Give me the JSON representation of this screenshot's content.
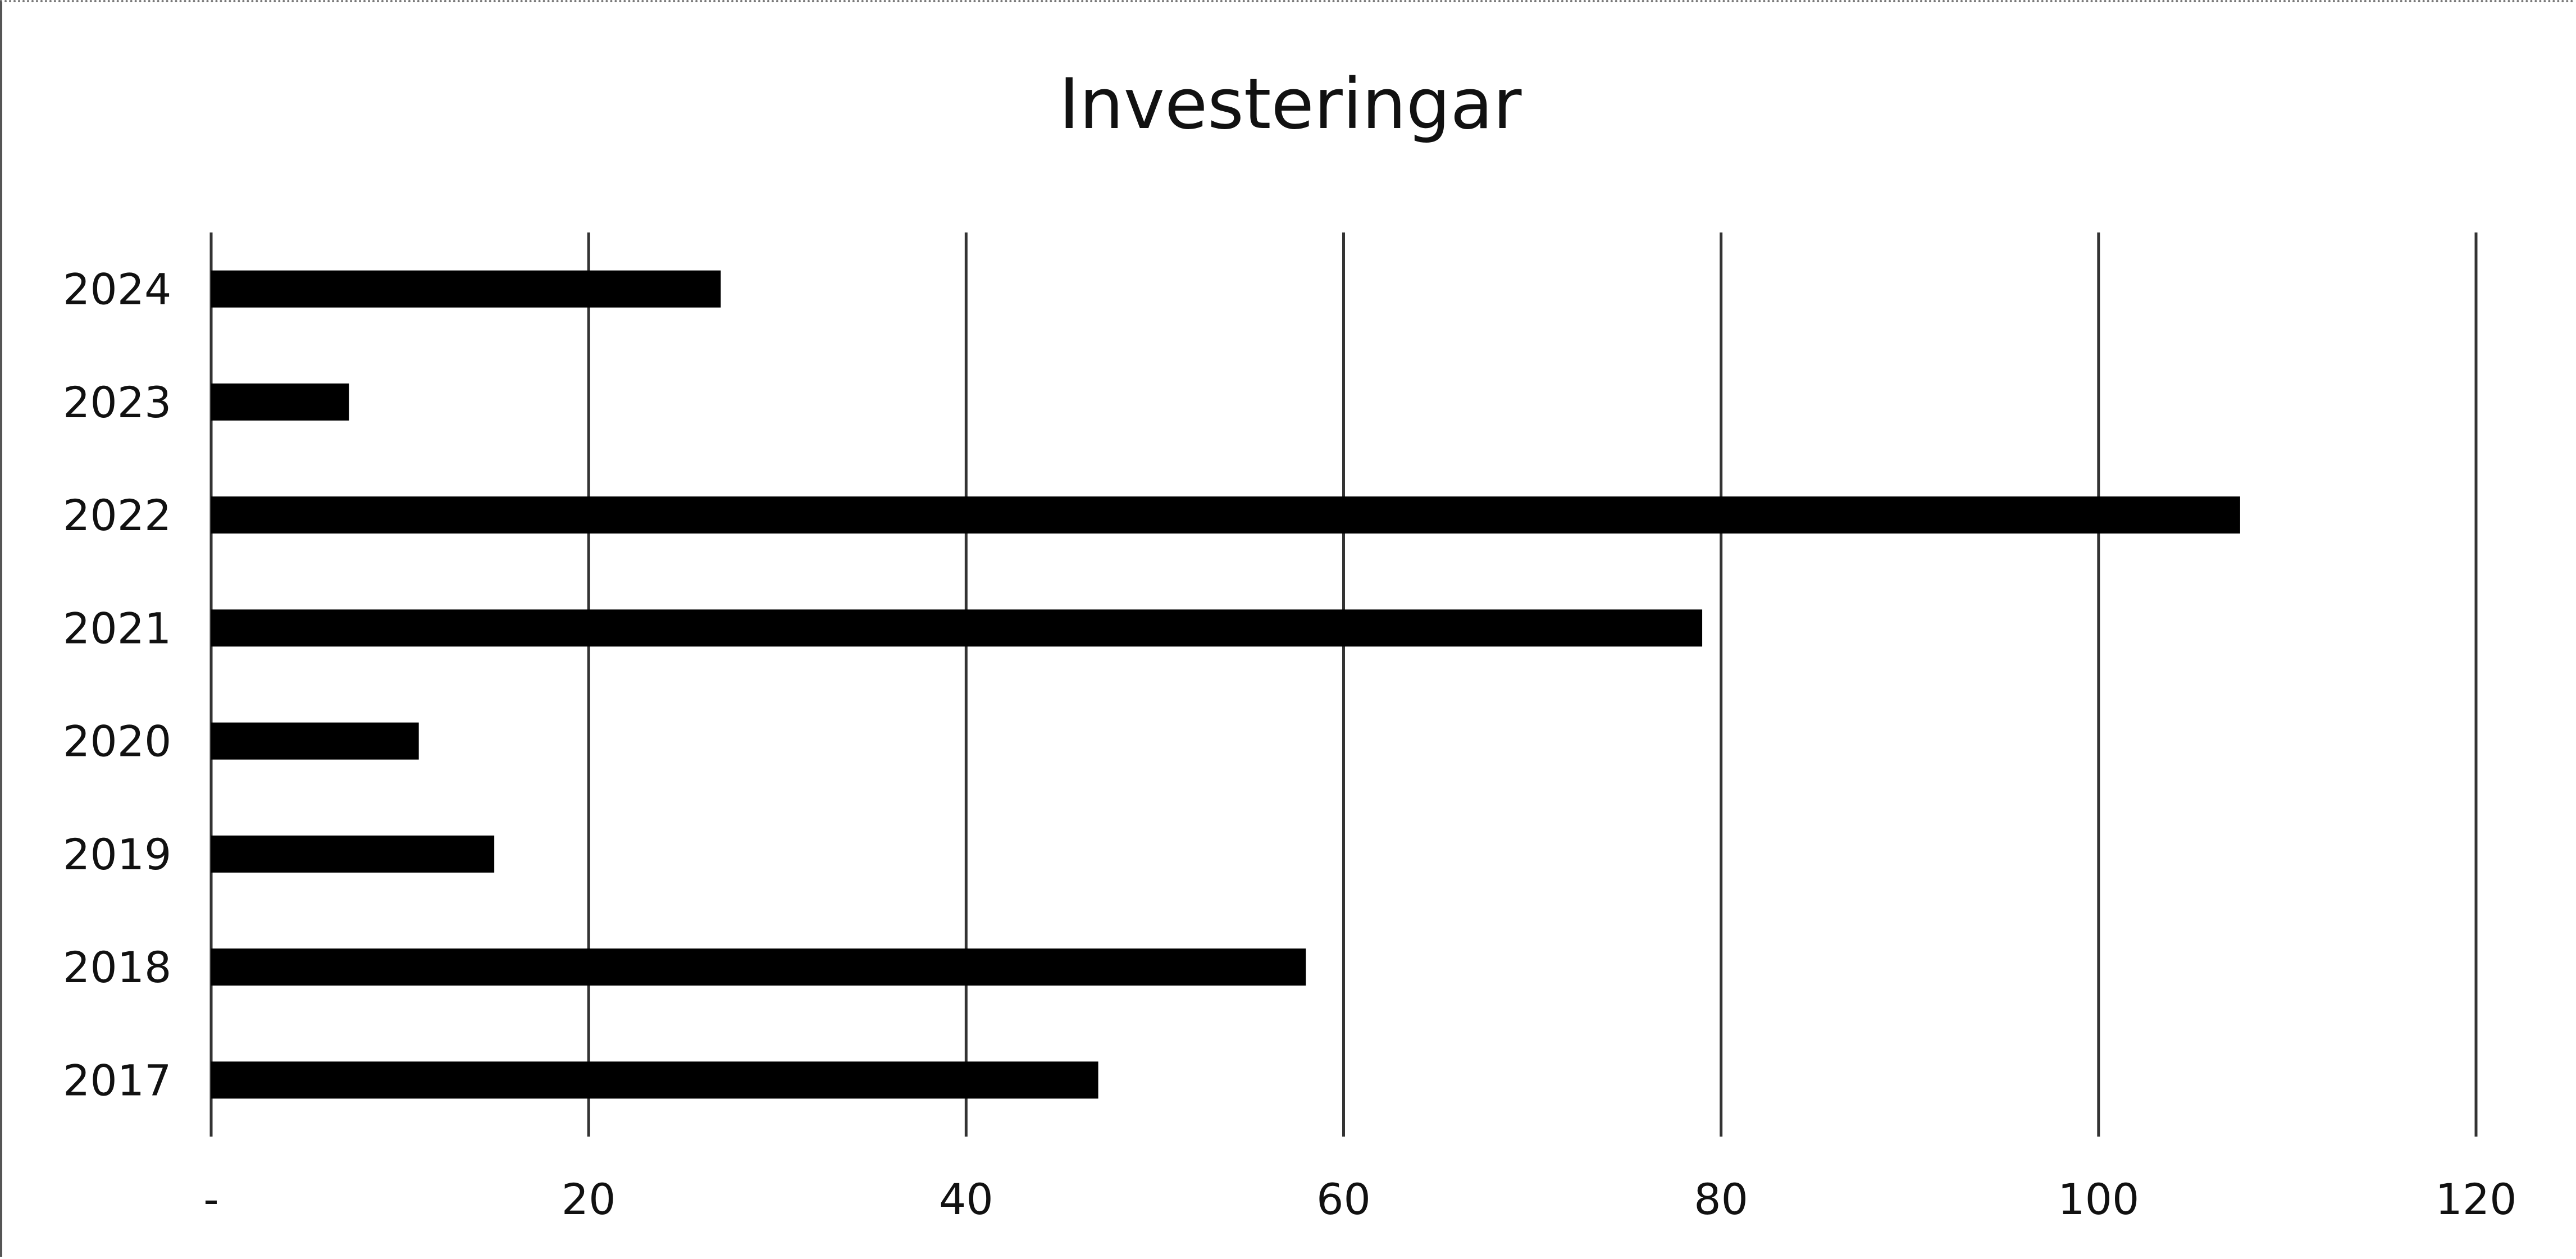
{
  "chart_data": {
    "type": "bar",
    "orientation": "horizontal",
    "title": "Investeringar",
    "xlabel": "",
    "ylabel": "",
    "categories": [
      "2017",
      "2018",
      "2019",
      "2020",
      "2021",
      "2022",
      "2023",
      "2024"
    ],
    "values": [
      47,
      58,
      15,
      11,
      79,
      107.5,
      7.3,
      27
    ],
    "xlim": [
      0,
      120
    ],
    "x_ticks": [
      "-",
      "20",
      "40",
      "60",
      "80",
      "100",
      "120"
    ],
    "grid": "vertical",
    "legend": "none",
    "colors": {
      "bar": "#000000",
      "grid": "#333333",
      "text": "#111111",
      "background": "#ffffff"
    }
  }
}
